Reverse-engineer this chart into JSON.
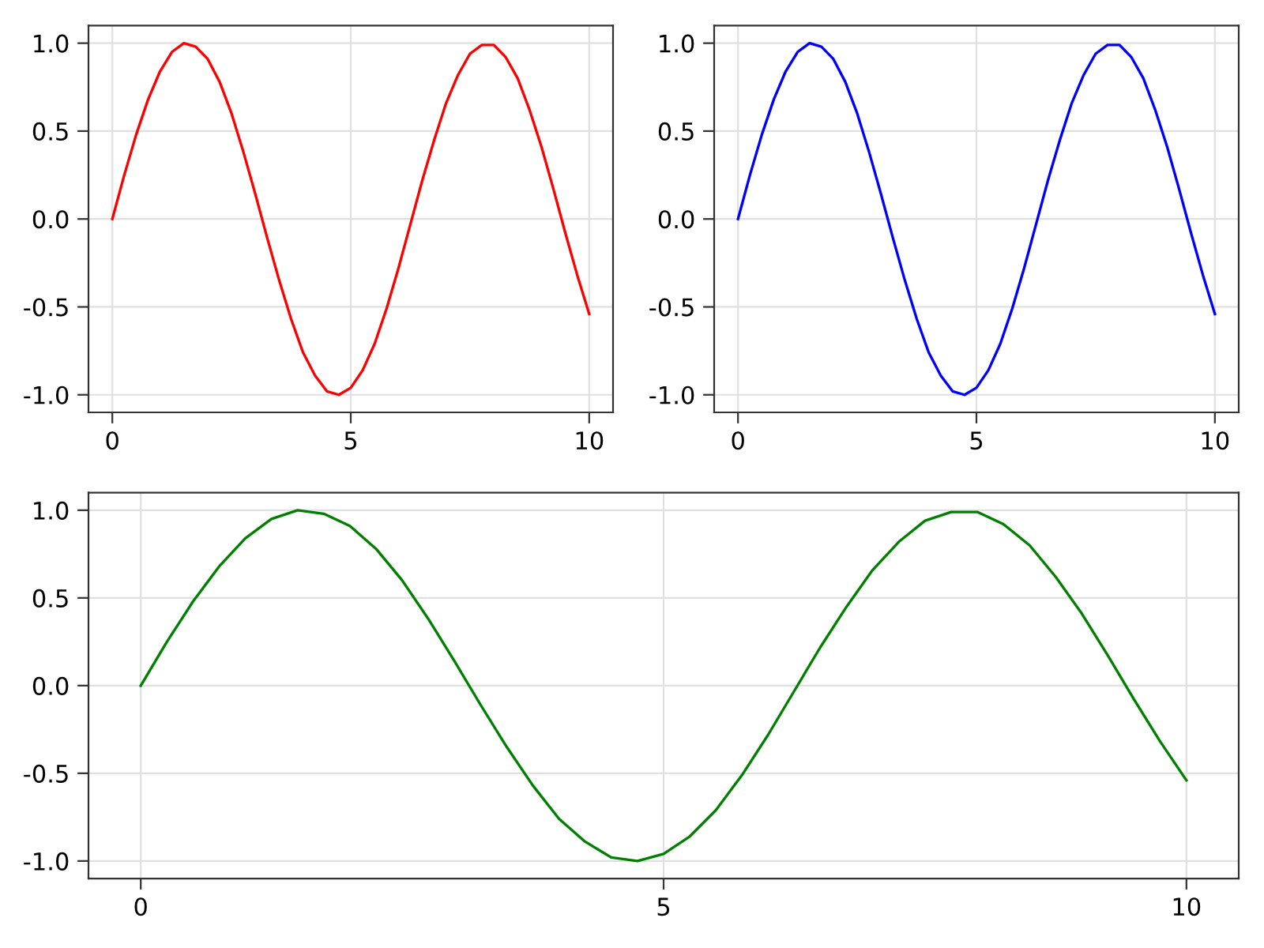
{
  "chart_data": [
    {
      "type": "line",
      "x": [
        0,
        0.25,
        0.5,
        0.75,
        1,
        1.25,
        1.5,
        1.75,
        2,
        2.25,
        2.5,
        2.75,
        3,
        3.25,
        3.5,
        3.75,
        4,
        4.25,
        4.5,
        4.75,
        5,
        5.25,
        5.5,
        5.75,
        6,
        6.25,
        6.5,
        6.75,
        7,
        7.25,
        7.5,
        7.75,
        8,
        8.25,
        8.5,
        8.75,
        9,
        9.25,
        9.5,
        9.75,
        10
      ],
      "series": [
        {
          "color": "#ff0000",
          "values": [
            0,
            0.25,
            0.48,
            0.68,
            0.84,
            0.95,
            1.0,
            0.98,
            0.91,
            0.78,
            0.6,
            0.38,
            0.14,
            -0.11,
            -0.35,
            -0.57,
            -0.76,
            -0.89,
            -0.98,
            -1.0,
            -0.96,
            -0.86,
            -0.71,
            -0.51,
            -0.28,
            -0.03,
            0.22,
            0.45,
            0.66,
            0.82,
            0.94,
            0.99,
            0.99,
            0.92,
            0.8,
            0.62,
            0.41,
            0.17,
            -0.08,
            -0.32,
            -0.54
          ]
        }
      ],
      "xlim": [
        -0.5,
        10.5
      ],
      "ylim": [
        -1.1,
        1.1
      ],
      "xticks": [
        0,
        5,
        10
      ],
      "yticks": [
        {
          "value": -1.0,
          "label": "-1.0"
        },
        {
          "value": -0.5,
          "label": "-0.5"
        },
        {
          "value": 0.0,
          "label": "0.0"
        },
        {
          "value": 0.5,
          "label": "0.5"
        },
        {
          "value": 1.0,
          "label": "1.0"
        }
      ],
      "grid": true
    },
    {
      "type": "line",
      "x": [
        0,
        0.25,
        0.5,
        0.75,
        1,
        1.25,
        1.5,
        1.75,
        2,
        2.25,
        2.5,
        2.75,
        3,
        3.25,
        3.5,
        3.75,
        4,
        4.25,
        4.5,
        4.75,
        5,
        5.25,
        5.5,
        5.75,
        6,
        6.25,
        6.5,
        6.75,
        7,
        7.25,
        7.5,
        7.75,
        8,
        8.25,
        8.5,
        8.75,
        9,
        9.25,
        9.5,
        9.75,
        10
      ],
      "series": [
        {
          "color": "#0000ff",
          "values": [
            0,
            0.25,
            0.48,
            0.68,
            0.84,
            0.95,
            1.0,
            0.98,
            0.91,
            0.78,
            0.6,
            0.38,
            0.14,
            -0.11,
            -0.35,
            -0.57,
            -0.76,
            -0.89,
            -0.98,
            -1.0,
            -0.96,
            -0.86,
            -0.71,
            -0.51,
            -0.28,
            -0.03,
            0.22,
            0.45,
            0.66,
            0.82,
            0.94,
            0.99,
            0.99,
            0.92,
            0.8,
            0.62,
            0.41,
            0.17,
            -0.08,
            -0.32,
            -0.54
          ]
        }
      ],
      "xlim": [
        -0.5,
        10.5
      ],
      "ylim": [
        -1.1,
        1.1
      ],
      "xticks": [
        0,
        5,
        10
      ],
      "yticks": [
        {
          "value": -1.0,
          "label": "-1.0"
        },
        {
          "value": -0.5,
          "label": "-0.5"
        },
        {
          "value": 0.0,
          "label": "0.0"
        },
        {
          "value": 0.5,
          "label": "0.5"
        },
        {
          "value": 1.0,
          "label": "1.0"
        }
      ],
      "grid": true
    },
    {
      "type": "line",
      "x": [
        0,
        0.25,
        0.5,
        0.75,
        1,
        1.25,
        1.5,
        1.75,
        2,
        2.25,
        2.5,
        2.75,
        3,
        3.25,
        3.5,
        3.75,
        4,
        4.25,
        4.5,
        4.75,
        5,
        5.25,
        5.5,
        5.75,
        6,
        6.25,
        6.5,
        6.75,
        7,
        7.25,
        7.5,
        7.75,
        8,
        8.25,
        8.5,
        8.75,
        9,
        9.25,
        9.5,
        9.75,
        10
      ],
      "series": [
        {
          "color": "#008000",
          "values": [
            0,
            0.25,
            0.48,
            0.68,
            0.84,
            0.95,
            1.0,
            0.98,
            0.91,
            0.78,
            0.6,
            0.38,
            0.14,
            -0.11,
            -0.35,
            -0.57,
            -0.76,
            -0.89,
            -0.98,
            -1.0,
            -0.96,
            -0.86,
            -0.71,
            -0.51,
            -0.28,
            -0.03,
            0.22,
            0.45,
            0.66,
            0.82,
            0.94,
            0.99,
            0.99,
            0.92,
            0.8,
            0.62,
            0.41,
            0.17,
            -0.08,
            -0.32,
            -0.54
          ]
        }
      ],
      "xlim": [
        -0.5,
        10.5
      ],
      "ylim": [
        -1.1,
        1.1
      ],
      "xticks": [
        0,
        5,
        10
      ],
      "yticks": [
        {
          "value": -1.0,
          "label": "-1.0"
        },
        {
          "value": -0.5,
          "label": "-0.5"
        },
        {
          "value": 0.0,
          "label": "0.0"
        },
        {
          "value": 0.5,
          "label": "0.5"
        },
        {
          "value": 1.0,
          "label": "1.0"
        }
      ],
      "grid": true
    }
  ]
}
